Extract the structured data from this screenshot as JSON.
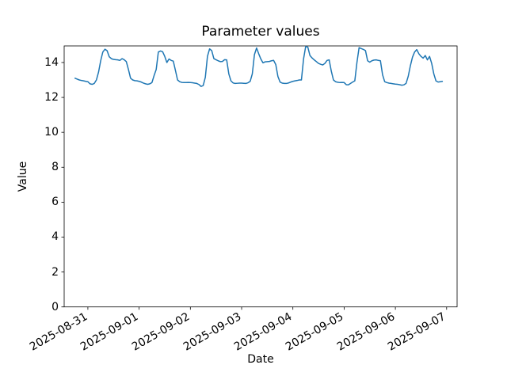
{
  "chart_data": {
    "type": "line",
    "title": "Parameter values",
    "xlabel": "Date",
    "ylabel": "Value",
    "grid": false,
    "legend_visible": false,
    "line_color": "#1f77b4",
    "line_width": 1.5,
    "axis_color": "#000000",
    "background_color": "#ffffff",
    "x_tick_labels": [
      "2025-08-31",
      "2025-09-01",
      "2025-09-02",
      "2025-09-03",
      "2025-09-04",
      "2025-09-05",
      "2025-09-06",
      "2025-09-07"
    ],
    "x_tick_interval_hours": 24,
    "x_tick_label_rotation_deg": 30,
    "y_ticks": [
      0,
      2,
      4,
      6,
      8,
      10,
      12,
      14
    ],
    "ylim": [
      0,
      14.95
    ],
    "xlim_hours_from_first_tick": [
      -11.1,
      172.9
    ],
    "series": [
      {
        "name": "Value",
        "start": "2025-08-30 18:00",
        "interval_hours": 1,
        "start_offset_hours_from_first_tick": -6,
        "values": [
          13.1,
          13.05,
          13.0,
          12.97,
          12.95,
          12.92,
          12.9,
          12.78,
          12.75,
          12.8,
          13.0,
          13.45,
          14.1,
          14.6,
          14.76,
          14.68,
          14.33,
          14.22,
          14.18,
          14.16,
          14.15,
          14.12,
          14.22,
          14.16,
          14.05,
          13.6,
          13.1,
          13.0,
          12.96,
          12.95,
          12.92,
          12.88,
          12.82,
          12.78,
          12.75,
          12.78,
          12.85,
          13.25,
          13.6,
          14.6,
          14.66,
          14.62,
          14.35,
          14.0,
          14.2,
          14.12,
          14.08,
          13.55,
          13.0,
          12.9,
          12.86,
          12.85,
          12.85,
          12.86,
          12.85,
          12.84,
          12.82,
          12.8,
          12.74,
          12.63,
          12.68,
          13.15,
          14.35,
          14.78,
          14.68,
          14.22,
          14.16,
          14.1,
          14.05,
          14.06,
          14.16,
          14.15,
          13.35,
          12.95,
          12.83,
          12.8,
          12.81,
          12.82,
          12.82,
          12.81,
          12.8,
          12.84,
          12.92,
          13.35,
          14.45,
          14.83,
          14.5,
          14.2,
          13.98,
          14.04,
          14.05,
          14.06,
          14.1,
          14.12,
          13.88,
          13.2,
          12.88,
          12.82,
          12.8,
          12.8,
          12.83,
          12.88,
          12.92,
          12.95,
          12.97,
          13.0,
          13.0,
          14.2,
          14.92,
          14.88,
          14.4,
          14.26,
          14.15,
          14.05,
          13.95,
          13.9,
          13.86,
          13.95,
          14.12,
          14.15,
          13.5,
          13.0,
          12.9,
          12.87,
          12.85,
          12.86,
          12.85,
          12.73,
          12.72,
          12.8,
          12.88,
          12.95,
          14.0,
          14.85,
          14.8,
          14.75,
          14.68,
          14.1,
          14.02,
          14.1,
          14.14,
          14.15,
          14.12,
          14.1,
          13.3,
          12.9,
          12.85,
          12.82,
          12.8,
          12.78,
          12.76,
          12.75,
          12.73,
          12.7,
          12.72,
          12.8,
          13.2,
          13.8,
          14.3,
          14.6,
          14.74,
          14.5,
          14.35,
          14.25,
          14.4,
          14.15,
          14.35,
          13.95,
          13.35,
          12.95,
          12.88,
          12.9,
          12.92
        ]
      }
    ]
  }
}
